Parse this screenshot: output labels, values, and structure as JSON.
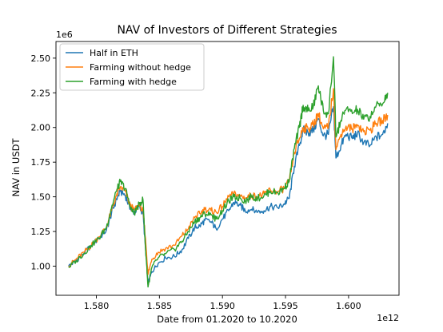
{
  "chart_data": {
    "type": "line",
    "title": "NAV of Investors of Different Strategies",
    "xlabel": "Date from 01.2020 to 10.2020",
    "ylabel": "NAV in USDT",
    "x_offset_label": "1e12",
    "y_offset_label": "1e6",
    "xlim": [
      1576800000000,
      1604000000000
    ],
    "ylim": [
      790000,
      2620000
    ],
    "x_ticks": [
      1580000000000,
      1585000000000,
      1590000000000,
      1595000000000,
      1600000000000
    ],
    "x_tick_labels": [
      "1.580",
      "1.585",
      "1.590",
      "1.595",
      "1.600"
    ],
    "y_ticks": [
      1000000,
      1250000,
      1500000,
      1750000,
      2000000,
      2250000,
      2500000
    ],
    "y_tick_labels": [
      "1.00",
      "1.25",
      "1.50",
      "1.75",
      "2.00",
      "2.25",
      "2.50"
    ],
    "grid": false,
    "legend_position": "top-left",
    "series": [
      {
        "name": "Half in ETH",
        "color": "#1f77b4",
        "points": [
          [
            1577800000000,
            1000000
          ],
          [
            1578400000000,
            1040000
          ],
          [
            1579000000000,
            1090000
          ],
          [
            1579600000000,
            1150000
          ],
          [
            1580200000000,
            1200000
          ],
          [
            1580800000000,
            1260000
          ],
          [
            1581200000000,
            1380000
          ],
          [
            1581600000000,
            1480000
          ],
          [
            1581900000000,
            1540000
          ],
          [
            1582300000000,
            1510000
          ],
          [
            1582700000000,
            1410000
          ],
          [
            1583000000000,
            1390000
          ],
          [
            1583400000000,
            1430000
          ],
          [
            1583700000000,
            1380000
          ],
          [
            1583900000000,
            1120000
          ],
          [
            1584100000000,
            870000
          ],
          [
            1584400000000,
            960000
          ],
          [
            1584900000000,
            1020000
          ],
          [
            1585500000000,
            1060000
          ],
          [
            1586200000000,
            1070000
          ],
          [
            1586800000000,
            1120000
          ],
          [
            1587300000000,
            1200000
          ],
          [
            1587800000000,
            1280000
          ],
          [
            1588200000000,
            1290000
          ],
          [
            1588600000000,
            1330000
          ],
          [
            1589100000000,
            1320000
          ],
          [
            1589500000000,
            1270000
          ],
          [
            1590000000000,
            1340000
          ],
          [
            1590500000000,
            1400000
          ],
          [
            1590900000000,
            1460000
          ],
          [
            1591400000000,
            1440000
          ],
          [
            1591800000000,
            1400000
          ],
          [
            1592300000000,
            1410000
          ],
          [
            1592800000000,
            1390000
          ],
          [
            1593300000000,
            1400000
          ],
          [
            1593800000000,
            1430000
          ],
          [
            1594400000000,
            1420000
          ],
          [
            1594900000000,
            1450000
          ],
          [
            1595300000000,
            1490000
          ],
          [
            1595700000000,
            1720000
          ],
          [
            1596100000000,
            1870000
          ],
          [
            1596400000000,
            1980000
          ],
          [
            1596800000000,
            1960000
          ],
          [
            1597200000000,
            1980000
          ],
          [
            1597600000000,
            2060000
          ],
          [
            1598000000000,
            1940000
          ],
          [
            1598400000000,
            1950000
          ],
          [
            1598800000000,
            2150000
          ],
          [
            1599000000000,
            1780000
          ],
          [
            1599400000000,
            1870000
          ],
          [
            1599800000000,
            1950000
          ],
          [
            1600300000000,
            1920000
          ],
          [
            1600700000000,
            1960000
          ],
          [
            1601200000000,
            1890000
          ],
          [
            1601700000000,
            1870000
          ],
          [
            1602200000000,
            1930000
          ],
          [
            1602700000000,
            1950000
          ],
          [
            1603100000000,
            2030000
          ]
        ]
      },
      {
        "name": "Farming without hedge",
        "color": "#ff7f0e",
        "points": [
          [
            1577800000000,
            1000000
          ],
          [
            1578400000000,
            1050000
          ],
          [
            1579000000000,
            1100000
          ],
          [
            1579600000000,
            1150000
          ],
          [
            1580200000000,
            1210000
          ],
          [
            1580800000000,
            1280000
          ],
          [
            1581200000000,
            1400000
          ],
          [
            1581600000000,
            1510000
          ],
          [
            1581900000000,
            1570000
          ],
          [
            1582300000000,
            1540000
          ],
          [
            1582700000000,
            1430000
          ],
          [
            1583000000000,
            1410000
          ],
          [
            1583400000000,
            1440000
          ],
          [
            1583700000000,
            1400000
          ],
          [
            1583900000000,
            1200000
          ],
          [
            1584100000000,
            940000
          ],
          [
            1584400000000,
            1050000
          ],
          [
            1584900000000,
            1100000
          ],
          [
            1585500000000,
            1130000
          ],
          [
            1586200000000,
            1150000
          ],
          [
            1586800000000,
            1220000
          ],
          [
            1587300000000,
            1270000
          ],
          [
            1587800000000,
            1350000
          ],
          [
            1588200000000,
            1380000
          ],
          [
            1588600000000,
            1410000
          ],
          [
            1589100000000,
            1400000
          ],
          [
            1589500000000,
            1390000
          ],
          [
            1590000000000,
            1430000
          ],
          [
            1590500000000,
            1500000
          ],
          [
            1590900000000,
            1520000
          ],
          [
            1591400000000,
            1510000
          ],
          [
            1591800000000,
            1490000
          ],
          [
            1592300000000,
            1510000
          ],
          [
            1592800000000,
            1500000
          ],
          [
            1593300000000,
            1520000
          ],
          [
            1593800000000,
            1550000
          ],
          [
            1594400000000,
            1540000
          ],
          [
            1594900000000,
            1560000
          ],
          [
            1595300000000,
            1610000
          ],
          [
            1595700000000,
            1820000
          ],
          [
            1596100000000,
            1920000
          ],
          [
            1596400000000,
            2000000
          ],
          [
            1596800000000,
            1990000
          ],
          [
            1597200000000,
            2020000
          ],
          [
            1597600000000,
            2100000
          ],
          [
            1598000000000,
            1990000
          ],
          [
            1598400000000,
            2000000
          ],
          [
            1598800000000,
            2280000
          ],
          [
            1599000000000,
            1840000
          ],
          [
            1599400000000,
            1950000
          ],
          [
            1599800000000,
            2010000
          ],
          [
            1600300000000,
            1990000
          ],
          [
            1600700000000,
            2020000
          ],
          [
            1601200000000,
            1970000
          ],
          [
            1601700000000,
            1980000
          ],
          [
            1602200000000,
            2030000
          ],
          [
            1602700000000,
            2050000
          ],
          [
            1603100000000,
            2090000
          ]
        ]
      },
      {
        "name": "Farming with hedge",
        "color": "#2ca02c",
        "points": [
          [
            1577800000000,
            990000
          ],
          [
            1578400000000,
            1040000
          ],
          [
            1579000000000,
            1090000
          ],
          [
            1579600000000,
            1150000
          ],
          [
            1580200000000,
            1200000
          ],
          [
            1580800000000,
            1280000
          ],
          [
            1581200000000,
            1420000
          ],
          [
            1581600000000,
            1540000
          ],
          [
            1581900000000,
            1610000
          ],
          [
            1582300000000,
            1560000
          ],
          [
            1582700000000,
            1420000
          ],
          [
            1583000000000,
            1380000
          ],
          [
            1583400000000,
            1450000
          ],
          [
            1583700000000,
            1480000
          ],
          [
            1583900000000,
            1130000
          ],
          [
            1584100000000,
            850000
          ],
          [
            1584400000000,
            990000
          ],
          [
            1584900000000,
            1060000
          ],
          [
            1585500000000,
            1090000
          ],
          [
            1586200000000,
            1120000
          ],
          [
            1586800000000,
            1180000
          ],
          [
            1587300000000,
            1250000
          ],
          [
            1587800000000,
            1320000
          ],
          [
            1588200000000,
            1350000
          ],
          [
            1588600000000,
            1380000
          ],
          [
            1589100000000,
            1370000
          ],
          [
            1589500000000,
            1340000
          ],
          [
            1590000000000,
            1400000
          ],
          [
            1590500000000,
            1470000
          ],
          [
            1590900000000,
            1500000
          ],
          [
            1591400000000,
            1490000
          ],
          [
            1591800000000,
            1470000
          ],
          [
            1592300000000,
            1500000
          ],
          [
            1592800000000,
            1490000
          ],
          [
            1593300000000,
            1510000
          ],
          [
            1593800000000,
            1540000
          ],
          [
            1594400000000,
            1530000
          ],
          [
            1594900000000,
            1560000
          ],
          [
            1595300000000,
            1620000
          ],
          [
            1595700000000,
            1850000
          ],
          [
            1596100000000,
            2000000
          ],
          [
            1596400000000,
            2160000
          ],
          [
            1596800000000,
            2120000
          ],
          [
            1597200000000,
            2150000
          ],
          [
            1597600000000,
            2300000
          ],
          [
            1598000000000,
            2120000
          ],
          [
            1598400000000,
            2100000
          ],
          [
            1598800000000,
            2510000
          ],
          [
            1599000000000,
            1930000
          ],
          [
            1599400000000,
            2050000
          ],
          [
            1599800000000,
            2130000
          ],
          [
            1600300000000,
            2100000
          ],
          [
            1600700000000,
            2130000
          ],
          [
            1601200000000,
            2060000
          ],
          [
            1601700000000,
            2080000
          ],
          [
            1602200000000,
            2160000
          ],
          [
            1602700000000,
            2170000
          ],
          [
            1603100000000,
            2250000
          ]
        ]
      }
    ]
  }
}
